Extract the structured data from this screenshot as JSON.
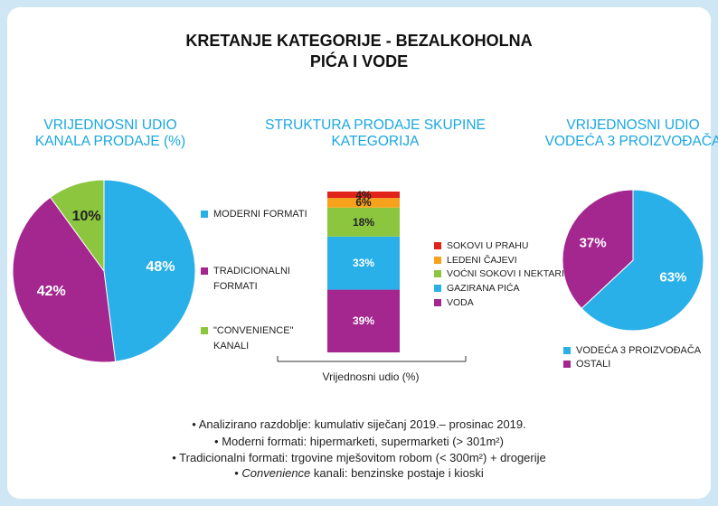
{
  "title": "KRETANJE KATEGORIJE - BEZALKOHOLNA PIĆA I VODE",
  "chart_data": [
    {
      "type": "pie",
      "title": "VRIJEDNOSNI UDIO KANALA PRODAJE (%)",
      "categories": [
        "MODERNI FORMATI",
        "TRADICIONALNI FORMATI",
        "\"CONVENIENCE\" KANALI"
      ],
      "values": [
        48,
        42,
        10
      ],
      "value_labels": [
        "48%",
        "42%",
        "10%"
      ],
      "colors": [
        "#2ab0e8",
        "#a3278f",
        "#8cc63f"
      ]
    },
    {
      "type": "stacked_bar",
      "title": "STRUKTURA PRODAJE SKUPINE KATEGORIJA",
      "xlabel": "Vrijednosni udio (%)",
      "series": [
        {
          "name": "VODA",
          "color": "#a3278f",
          "values": [
            39
          ],
          "value_labels": [
            "39%"
          ]
        },
        {
          "name": "GAZIRANA PIĆA",
          "color": "#2ab0e8",
          "values": [
            33
          ],
          "value_labels": [
            "33%"
          ]
        },
        {
          "name": "VOĆNI SOKOVI I NEKTARI",
          "color": "#8cc63f",
          "values": [
            18
          ],
          "value_labels": [
            "18%"
          ]
        },
        {
          "name": "LEDENI ČAJEVI",
          "color": "#f7a21b",
          "values": [
            6
          ],
          "value_labels": [
            "6%"
          ]
        },
        {
          "name": "SOKOVI U PRAHU",
          "color": "#e2231a",
          "values": [
            4
          ],
          "value_labels": [
            "4%"
          ]
        }
      ]
    },
    {
      "type": "pie",
      "title": "VRIJEDNOSNI UDIO VODEĆA 3 PROIZVOĐAČA",
      "categories": [
        "VODEĆA 3 PROIZVOĐAČA",
        "OSTALI"
      ],
      "values": [
        63,
        37
      ],
      "value_labels": [
        "63%",
        "37%"
      ],
      "colors": [
        "#2ab0e8",
        "#a3278f"
      ]
    }
  ],
  "notes": [
    "Analizirano razdoblje: kumulativ siječanj 2019.– prosinac 2019.",
    "Moderni formati: hipermarketi, supermarketi (> 301m²)",
    "Tradicionalni formati: trgovine mješovitom robom (< 300m²) + drogerije",
    {
      "italic": "Convenience",
      "text": " kanali: benzinske postaje i kioski"
    }
  ]
}
